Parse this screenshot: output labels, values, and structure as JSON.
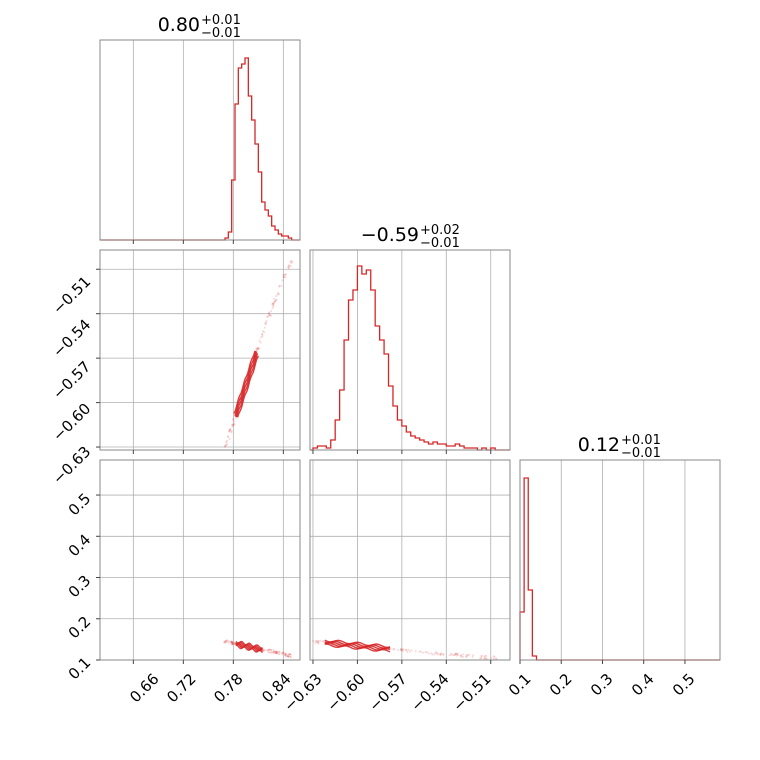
{
  "colors": {
    "series": "#d62728",
    "grid": "#b0b0b0",
    "frame": "#888888"
  },
  "chart_data": {
    "type": "corner",
    "parameters": [
      {
        "range": [
          0.62,
          0.86
        ],
        "ticks": [
          0.66,
          0.72,
          0.78,
          0.84
        ],
        "tick_labels": [
          "0.66",
          "0.72",
          "0.78",
          "0.84"
        ],
        "title": {
          "value": "0.80",
          "plus": "+0.01",
          "minus": "−0.01"
        }
      },
      {
        "range": [
          -0.632,
          -0.497
        ],
        "ticks": [
          -0.63,
          -0.6,
          -0.57,
          -0.54,
          -0.51
        ],
        "tick_labels": [
          "−0.63",
          "−0.60",
          "−0.57",
          "−0.54",
          "−0.51"
        ],
        "title": {
          "value": "−0.59",
          "plus": "+0.02",
          "minus": "−0.01"
        }
      },
      {
        "range": [
          0.1,
          0.585
        ],
        "ticks": [
          0.1,
          0.2,
          0.3,
          0.4,
          0.5
        ],
        "tick_labels": [
          "0.1",
          "0.2",
          "0.3",
          "0.4",
          "0.5"
        ],
        "title": {
          "value": "0.12",
          "plus": "+0.01",
          "minus": "−0.01"
        }
      }
    ],
    "histograms": [
      {
        "param": 0,
        "bin_edges": [
          0.77,
          0.774,
          0.778,
          0.782,
          0.786,
          0.79,
          0.794,
          0.798,
          0.802,
          0.806,
          0.81,
          0.814,
          0.818,
          0.822,
          0.826,
          0.83,
          0.834,
          0.838,
          0.842,
          0.846,
          0.85
        ],
        "counts": [
          0.01,
          0.04,
          0.3,
          0.68,
          0.86,
          0.88,
          0.91,
          0.72,
          0.6,
          0.48,
          0.34,
          0.19,
          0.15,
          0.12,
          0.07,
          0.05,
          0.03,
          0.02,
          0.02,
          0.01
        ]
      },
      {
        "param": 1,
        "bin_edges": [
          -0.63,
          -0.627,
          -0.624,
          -0.621,
          -0.618,
          -0.615,
          -0.612,
          -0.609,
          -0.606,
          -0.603,
          -0.6,
          -0.597,
          -0.594,
          -0.591,
          -0.588,
          -0.585,
          -0.582,
          -0.579,
          -0.576,
          -0.573,
          -0.57,
          -0.567,
          -0.564,
          -0.561,
          -0.558,
          -0.555,
          -0.552,
          -0.549,
          -0.546,
          -0.543,
          -0.54,
          -0.537,
          -0.534,
          -0.531,
          -0.528,
          -0.525,
          -0.522,
          -0.519,
          -0.516,
          -0.513,
          -0.51,
          -0.507,
          -0.504,
          -0.501,
          -0.498
        ],
        "counts": [
          0.01,
          0.02,
          0.02,
          0.01,
          0.05,
          0.15,
          0.3,
          0.55,
          0.75,
          0.8,
          0.92,
          0.88,
          0.9,
          0.8,
          0.62,
          0.55,
          0.48,
          0.32,
          0.22,
          0.15,
          0.12,
          0.09,
          0.07,
          0.06,
          0.05,
          0.04,
          0.03,
          0.04,
          0.03,
          0.03,
          0.02,
          0.02,
          0.03,
          0.02,
          0.01,
          0.01,
          0.01,
          0.0,
          0.01,
          0.0,
          0.01,
          0.0,
          0.0,
          0.0
        ]
      },
      {
        "param": 2,
        "bin_edges": [
          0.1,
          0.11,
          0.12,
          0.13,
          0.14,
          0.15
        ],
        "counts": [
          0.24,
          0.91,
          0.35,
          0.02,
          0.0
        ]
      }
    ],
    "scatter_2d": [
      {
        "x_param": 0,
        "y_param": 1,
        "line": [
          [
            0.77,
            -0.63
          ],
          [
            0.78,
            -0.614
          ],
          [
            0.79,
            -0.597
          ],
          [
            0.8,
            -0.58
          ],
          [
            0.81,
            -0.563
          ],
          [
            0.82,
            -0.546
          ],
          [
            0.83,
            -0.531
          ],
          [
            0.84,
            -0.517
          ],
          [
            0.85,
            -0.504
          ]
        ],
        "core_x": [
          0.783,
          0.808
        ]
      },
      {
        "x_param": 0,
        "y_param": 2,
        "line": [
          [
            0.77,
            0.145
          ],
          [
            0.79,
            0.136
          ],
          [
            0.81,
            0.127
          ],
          [
            0.83,
            0.119
          ],
          [
            0.85,
            0.11
          ]
        ],
        "core_x": [
          0.783,
          0.815
        ]
      },
      {
        "x_param": 1,
        "y_param": 2,
        "line": [
          [
            -0.63,
            0.145
          ],
          [
            -0.61,
            0.138
          ],
          [
            -0.59,
            0.131
          ],
          [
            -0.57,
            0.124
          ],
          [
            -0.55,
            0.117
          ],
          [
            -0.53,
            0.111
          ],
          [
            -0.505,
            0.104
          ]
        ],
        "core_x": [
          -0.622,
          -0.578
        ]
      }
    ]
  }
}
